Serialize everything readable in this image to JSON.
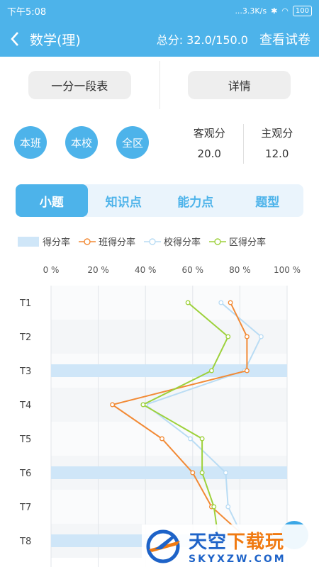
{
  "status_bar": {
    "time": "下午5:08",
    "speed": "...3.3K/s",
    "battery": "100"
  },
  "header": {
    "title": "数学(理)",
    "score": "总分: 32.0/150.0",
    "view_paper": "查看试卷"
  },
  "top_buttons": {
    "segment_table": "一分一段表",
    "details": "详情"
  },
  "scope": [
    "本班",
    "本校",
    "全区"
  ],
  "stats": {
    "objective_label": "客观分",
    "objective_value": "20.0",
    "subjective_label": "主观分",
    "subjective_value": "12.0"
  },
  "tabs": [
    "小题",
    "知识点",
    "能力点",
    "题型"
  ],
  "legend": [
    "得分率",
    "班得分率",
    "校得分率",
    "区得分率"
  ],
  "colors": {
    "primary": "#4db3ea",
    "class": "#f28a35",
    "school": "#b9dcf4",
    "district": "#9dd13b",
    "bar": "#cfe6f8"
  },
  "watermark": {
    "brand_1": "天空",
    "brand_2": "下载玩",
    "domain": "SKYXZW.COM"
  },
  "chart_data": {
    "type": "line",
    "categories": [
      "T1",
      "T2",
      "T3",
      "T4",
      "T5",
      "T6",
      "T7",
      "T8"
    ],
    "x_ticks": [
      "0 %",
      "20 %",
      "40 %",
      "60 %",
      "80 %",
      "100 %"
    ],
    "xlim": [
      0,
      100
    ],
    "bars": {
      "name": "得分率",
      "values": [
        0,
        0,
        100,
        0,
        0,
        100,
        0,
        100
      ]
    },
    "series": [
      {
        "name": "班得分率",
        "values": [
          76,
          83,
          83,
          26,
          47,
          60,
          68,
          84
        ]
      },
      {
        "name": "校得分率",
        "values": [
          72,
          89,
          82,
          40,
          59,
          74,
          75,
          82
        ]
      },
      {
        "name": "区得分率",
        "values": [
          58,
          75,
          68,
          39,
          64,
          64,
          69,
          71
        ]
      }
    ]
  }
}
